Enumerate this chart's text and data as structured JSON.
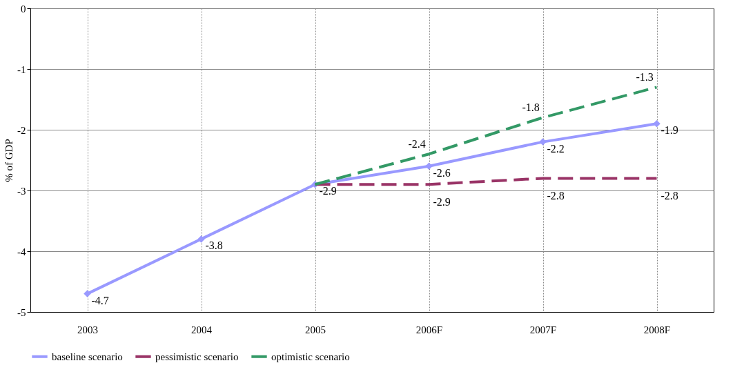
{
  "chart_data": {
    "type": "line",
    "ylabel": "% of GDP",
    "categories": [
      "2003",
      "2004",
      "2005",
      "2006F",
      "2007F",
      "2008F"
    ],
    "ylim": [
      -5,
      0
    ],
    "yticks": [
      -5,
      -4,
      -3,
      -2,
      -1,
      0
    ],
    "grid": true,
    "legend": "bottom",
    "series": [
      {
        "name": "baseline scenario",
        "color": "#9999ff",
        "marker": "diamond",
        "line_style": "solid",
        "values": [
          -4.7,
          -3.8,
          -2.9,
          -2.6,
          -2.2,
          -1.9
        ],
        "value_labels": [
          "-4.7",
          "-3.8",
          "-2.9",
          "-2.6",
          "-2.2",
          "-1.9"
        ]
      },
      {
        "name": "pessimistic scenario",
        "color": "#993366",
        "marker": "none",
        "line_style": "dashed",
        "values": [
          null,
          null,
          -2.9,
          -2.9,
          -2.8,
          -2.8
        ],
        "value_labels": [
          null,
          null,
          null,
          "-2.9",
          "-2.8",
          "-2.8"
        ]
      },
      {
        "name": "optimistic scenario",
        "color": "#339966",
        "marker": "none",
        "line_style": "dashed",
        "values": [
          null,
          null,
          -2.9,
          -2.4,
          -1.8,
          -1.3
        ],
        "value_labels": [
          null,
          null,
          null,
          "-2.4",
          "-1.8",
          "-1.3"
        ]
      }
    ]
  }
}
